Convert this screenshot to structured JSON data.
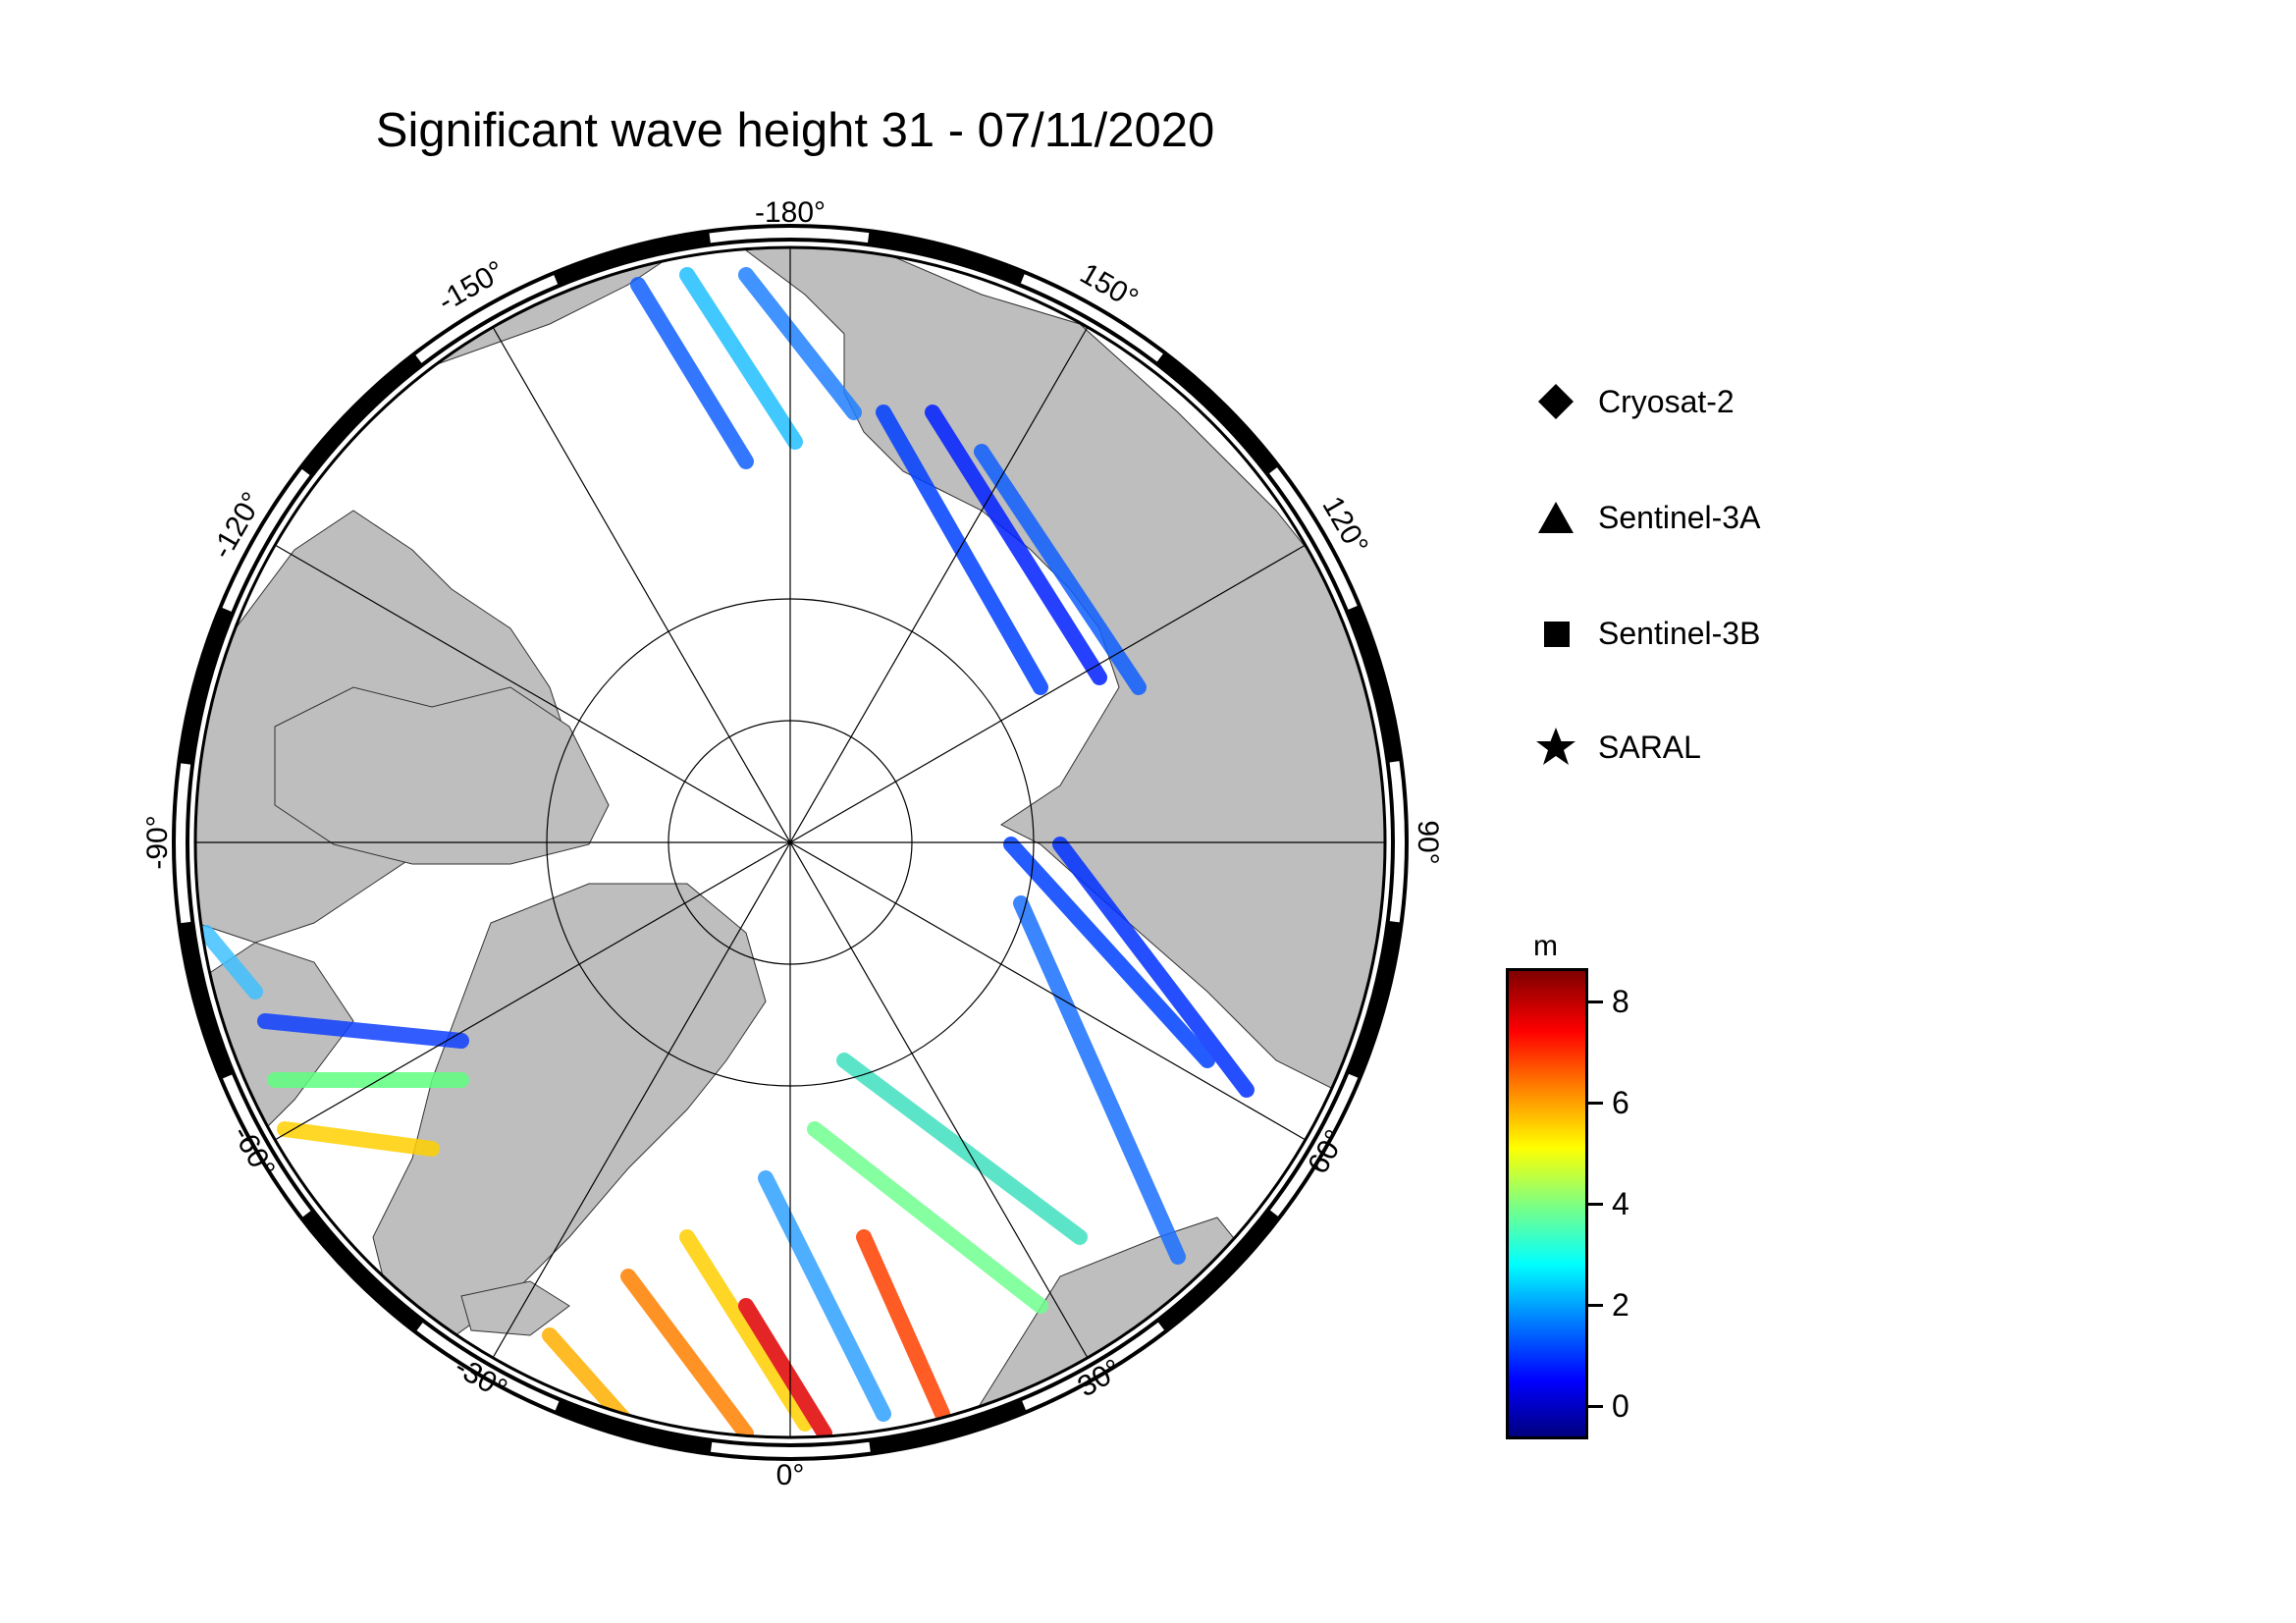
{
  "title": "Significant wave height 31 - 07/11/2020",
  "map": {
    "projection": "north polar stereographic",
    "longitude_labels": [
      "-180°",
      "150°",
      "120°",
      "90°",
      "60°",
      "30°",
      "0°",
      "-30°",
      "-60°",
      "-90°",
      "-120°",
      "-150°"
    ],
    "colors": {
      "land": "#bebebe",
      "ocean_ice": "#ffffff",
      "frame": "#000000"
    }
  },
  "legend": [
    {
      "label": "Cryosat-2",
      "icon": "diamond-icon"
    },
    {
      "label": "Sentinel-3A",
      "icon": "triangle-icon"
    },
    {
      "label": "Sentinel-3B",
      "icon": "square-icon"
    },
    {
      "label": "SARAL",
      "icon": "star-icon"
    }
  ],
  "colorbar": {
    "unit": "m",
    "ticks": [
      "0",
      "2",
      "4",
      "6",
      "8"
    ],
    "range": [
      -0.6,
      8.6
    ],
    "colormap": "jet"
  }
}
